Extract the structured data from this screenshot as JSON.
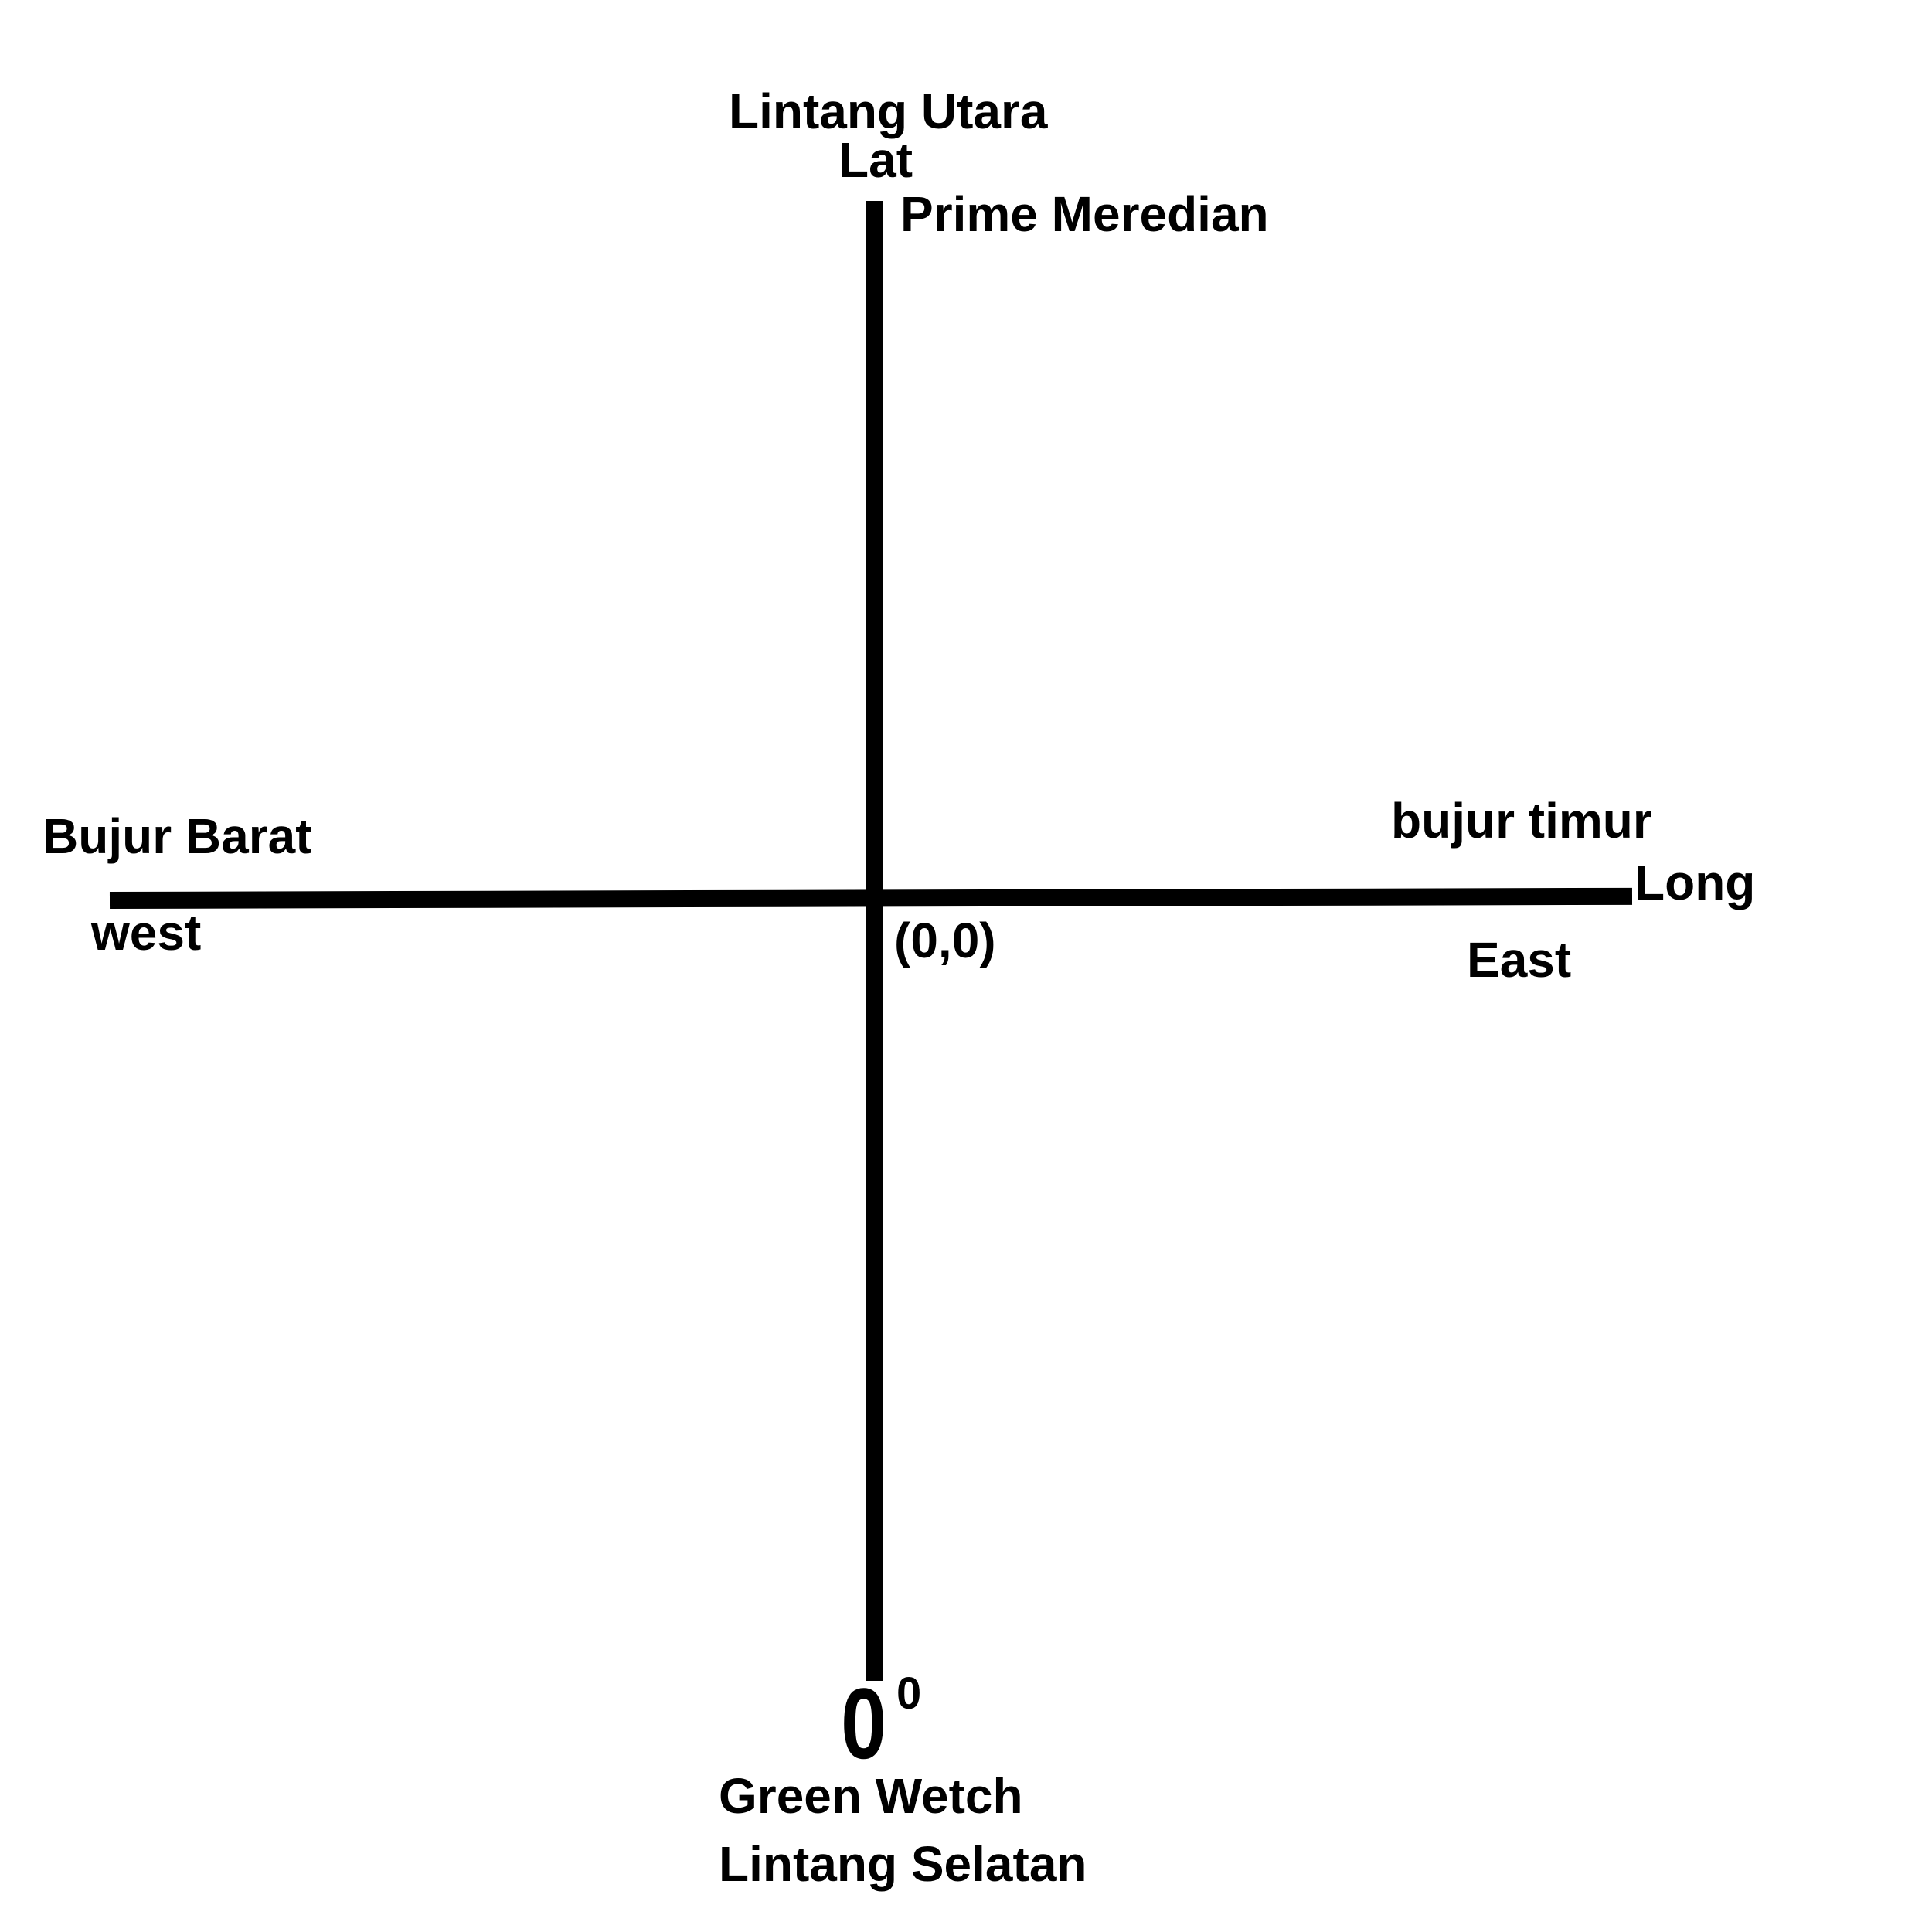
{
  "labels": {
    "lintang_utara": "Lintang Utara",
    "lat": "Lat",
    "prime_meridian": "Prime Meredian",
    "bujur_barat": "Bujur Barat",
    "west": "west",
    "bujur_timur": "bujur timur",
    "long": "Long",
    "east": "East",
    "origin": "(0,0)",
    "degree_value": "0",
    "degree_mark": "0",
    "green_wetch": "Green Wetch",
    "lintang_selatan": "Lintang Selatan"
  },
  "colors": {
    "axis": "#000000",
    "text": "#000000",
    "background": "#ffffff"
  }
}
